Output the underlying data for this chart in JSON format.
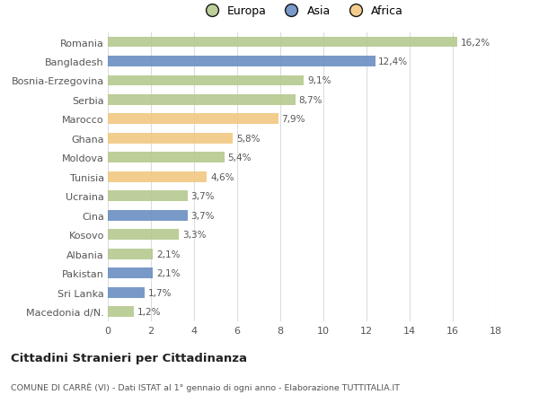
{
  "categories": [
    "Romania",
    "Bangladesh",
    "Bosnia-Erzegovina",
    "Serbia",
    "Marocco",
    "Ghana",
    "Moldova",
    "Tunisia",
    "Ucraina",
    "Cina",
    "Kosovo",
    "Albania",
    "Pakistan",
    "Sri Lanka",
    "Macedonia d/N."
  ],
  "values": [
    16.2,
    12.4,
    9.1,
    8.7,
    7.9,
    5.8,
    5.4,
    4.6,
    3.7,
    3.7,
    3.3,
    2.1,
    2.1,
    1.7,
    1.2
  ],
  "continents": [
    "Europa",
    "Asia",
    "Europa",
    "Europa",
    "Africa",
    "Africa",
    "Europa",
    "Africa",
    "Europa",
    "Asia",
    "Europa",
    "Europa",
    "Asia",
    "Asia",
    "Europa"
  ],
  "colors": {
    "Europa": "#b5c98e",
    "Asia": "#6b8fc2",
    "Africa": "#f2c882"
  },
  "bar_alpha": 0.9,
  "xlim": [
    0,
    18
  ],
  "xticks": [
    0,
    2,
    4,
    6,
    8,
    10,
    12,
    14,
    16,
    18
  ],
  "title": "Cittadini Stranieri per Cittadinanza",
  "subtitle": "COMUNE DI CARRÈ (VI) - Dati ISTAT al 1° gennaio di ogni anno - Elaborazione TUTTITALIA.IT",
  "background_color": "#ffffff",
  "grid_color": "#dddddd",
  "label_values": [
    "16,2%",
    "12,4%",
    "9,1%",
    "8,7%",
    "7,9%",
    "5,8%",
    "5,4%",
    "4,6%",
    "3,7%",
    "3,7%",
    "3,3%",
    "2,1%",
    "2,1%",
    "1,7%",
    "1,2%"
  ],
  "bar_height": 0.55
}
